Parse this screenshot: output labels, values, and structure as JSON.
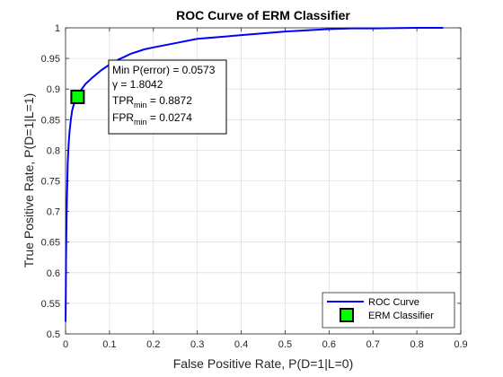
{
  "chart_data": {
    "type": "line",
    "title": "ROC Curve of ERM Classifier",
    "xlabel": "False Positive Rate, P(D=1|L=0)",
    "ylabel": "True Positive Rate, P(D=1|L=1)",
    "xlim": [
      0,
      0.9
    ],
    "ylim": [
      0.5,
      1
    ],
    "xticks": [
      "0",
      "0.1",
      "0.2",
      "0.3",
      "0.4",
      "0.5",
      "0.6",
      "0.7",
      "0.8",
      "0.9"
    ],
    "yticks": [
      "0.5",
      "0.55",
      "0.6",
      "0.65",
      "0.7",
      "0.75",
      "0.8",
      "0.85",
      "0.9",
      "0.95",
      "1"
    ],
    "grid": true,
    "legend_position": "bottom-right",
    "series": [
      {
        "name": "ROC Curve",
        "color": "#0000ff",
        "x": [
          0,
          0.0005,
          0.001,
          0.002,
          0.003,
          0.004,
          0.005,
          0.007,
          0.009,
          0.012,
          0.015,
          0.02,
          0.025,
          0.0274,
          0.035,
          0.045,
          0.06,
          0.08,
          0.1,
          0.12,
          0.15,
          0.18,
          0.2,
          0.25,
          0.3,
          0.35,
          0.4,
          0.45,
          0.5,
          0.55,
          0.6,
          0.65,
          0.7,
          0.8,
          0.86
        ],
        "y": [
          0.52,
          0.56,
          0.62,
          0.68,
          0.72,
          0.75,
          0.78,
          0.81,
          0.83,
          0.85,
          0.865,
          0.878,
          0.885,
          0.8872,
          0.898,
          0.908,
          0.918,
          0.93,
          0.94,
          0.948,
          0.958,
          0.965,
          0.968,
          0.975,
          0.982,
          0.985,
          0.988,
          0.991,
          0.994,
          0.996,
          0.998,
          0.999,
          0.999,
          1.0,
          1.0
        ]
      },
      {
        "name": "ERM Classifier",
        "color": "#00ff00",
        "marker": "square",
        "x": [
          0.0274
        ],
        "y": [
          0.8872
        ]
      }
    ],
    "annotation": {
      "line1": "Min P(error) = 0.0573",
      "gamma_symbol": "γ",
      "gamma_text": " = 1.8042",
      "tpr_prefix": "TPR",
      "tpr_sub": "min",
      "tpr_text": " = 0.8872",
      "fpr_prefix": "FPR",
      "fpr_sub": "min",
      "fpr_text": " = 0.0274"
    }
  }
}
